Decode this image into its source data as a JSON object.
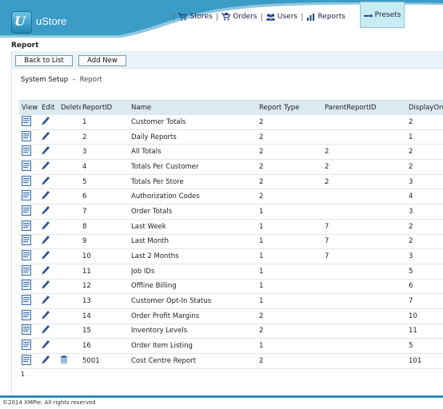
{
  "app": {
    "name": "uStore",
    "logo_text": "U"
  },
  "nav": {
    "items": [
      {
        "label": "Stores",
        "icon": "cart-icon"
      },
      {
        "label": "Orders",
        "icon": "orders-icon"
      },
      {
        "label": "Users",
        "icon": "users-icon"
      },
      {
        "label": "Reports",
        "icon": "reports-icon"
      }
    ],
    "presets": {
      "label": "Presets",
      "icon": "wrench-icon",
      "active": true
    }
  },
  "page_title": "Report",
  "toolbar": {
    "back_label": "Back to List",
    "add_label": "Add New"
  },
  "breadcrumb": {
    "parent": "System Setup",
    "separator": "-",
    "current": "Report"
  },
  "table": {
    "columns": [
      "View",
      "Edit",
      "Delete",
      "ReportID",
      "Name",
      "Report Type",
      "ParentReportID",
      "DisplayOrder"
    ],
    "rows": [
      {
        "id": "1",
        "name": "Customer Totals",
        "type": "2",
        "parent": "",
        "order": "2",
        "deletable": false
      },
      {
        "id": "2",
        "name": "Daily Reports",
        "type": "2",
        "parent": "",
        "order": "1",
        "deletable": false
      },
      {
        "id": "3",
        "name": "All Totals",
        "type": "2",
        "parent": "2",
        "order": "2",
        "deletable": false
      },
      {
        "id": "4",
        "name": "Totals Per Customer",
        "type": "2",
        "parent": "2",
        "order": "2",
        "deletable": false
      },
      {
        "id": "5",
        "name": "Totals Per Store",
        "type": "2",
        "parent": "2",
        "order": "3",
        "deletable": false
      },
      {
        "id": "6",
        "name": "Authorization Codes",
        "type": "2",
        "parent": "",
        "order": "4",
        "deletable": false
      },
      {
        "id": "7",
        "name": "Order Totals",
        "type": "1",
        "parent": "",
        "order": "3",
        "deletable": false
      },
      {
        "id": "8",
        "name": "Last Week",
        "type": "1",
        "parent": "7",
        "order": "2",
        "deletable": false
      },
      {
        "id": "9",
        "name": "Last Month",
        "type": "1",
        "parent": "7",
        "order": "2",
        "deletable": false
      },
      {
        "id": "10",
        "name": "Last 2 Months",
        "type": "1",
        "parent": "7",
        "order": "3",
        "deletable": false
      },
      {
        "id": "11",
        "name": "Job IDs",
        "type": "1",
        "parent": "",
        "order": "5",
        "deletable": false
      },
      {
        "id": "12",
        "name": "Offline Billing",
        "type": "1",
        "parent": "",
        "order": "6",
        "deletable": false
      },
      {
        "id": "13",
        "name": "Customer Opt-In Status",
        "type": "1",
        "parent": "",
        "order": "7",
        "deletable": false
      },
      {
        "id": "14",
        "name": "Order Profit Margins",
        "type": "2",
        "parent": "",
        "order": "10",
        "deletable": false
      },
      {
        "id": "15",
        "name": "Inventory Levels",
        "type": "2",
        "parent": "",
        "order": "11",
        "deletable": false
      },
      {
        "id": "16",
        "name": "Order Item Listing",
        "type": "1",
        "parent": "",
        "order": "5",
        "deletable": false
      },
      {
        "id": "5001",
        "name": "Cost Centre Report",
        "type": "2",
        "parent": "",
        "order": "101",
        "deletable": true
      }
    ]
  },
  "pager": {
    "current_page": "1"
  },
  "footer": {
    "copyright": "©2014 XMPie. All rights reserved"
  },
  "colors": {
    "accent": "#2a8fba",
    "header_wave": "#3a9cc7",
    "grid_header": "#dbe9f1",
    "presets_bg": "#c8ecf2"
  }
}
